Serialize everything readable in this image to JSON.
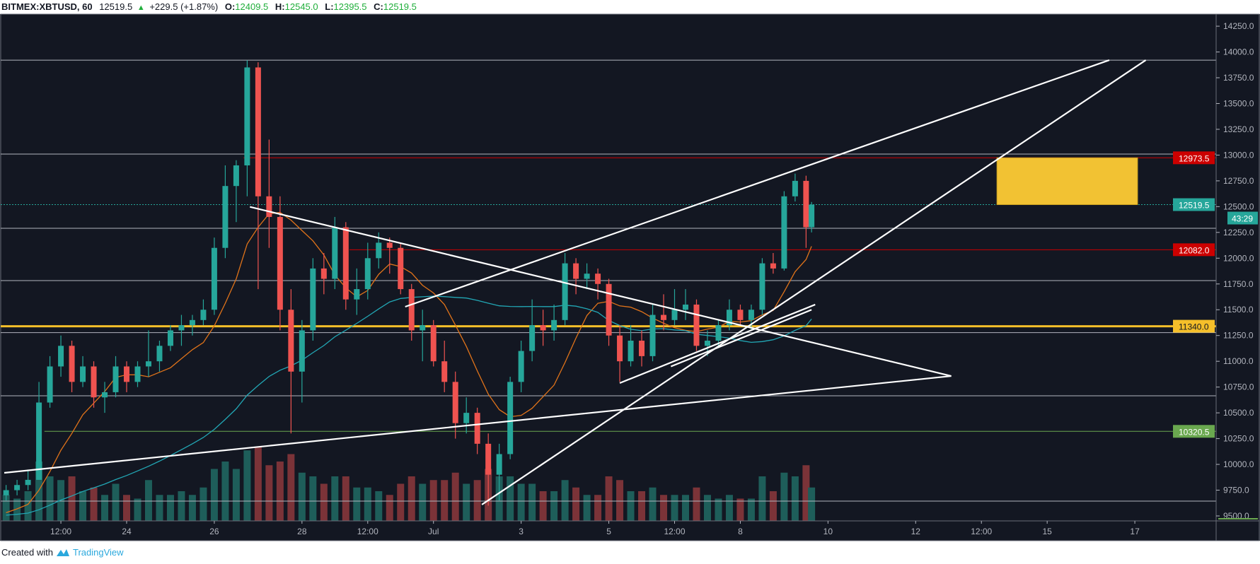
{
  "header": {
    "symbol": "BITMEX:XBTUSD, 60",
    "last": "12519.5",
    "change": "+229.5 (+1.87%)",
    "open_label": "O:",
    "open": "12409.5",
    "high_label": "H:",
    "high": "12545.0",
    "low_label": "L:",
    "low": "12395.5",
    "close_label": "C:",
    "close": "12519.5",
    "direction_icon": "triangle-up-icon"
  },
  "footer": {
    "created_with": "Created with",
    "brand": "TradingView",
    "logo_icon": "tradingview-logo-icon"
  },
  "colors": {
    "background": "#131722",
    "up": "#26a69a",
    "down": "#ef5350",
    "volume_up": "#1e5e5a",
    "volume_down": "#7b3338",
    "trendline": "#ffffff",
    "hline": "#b2b5be",
    "resistance": "#cc0000",
    "key_level": "#f5bf2a",
    "support": "#6aa84f",
    "last_price": "#26a69a",
    "target_box": "#f2c233",
    "ma_fast": "#e0731a",
    "ma_slow": "#22a7b5"
  },
  "chart_data": {
    "type": "candlestick",
    "symbol": "BITMEX:XBTUSD",
    "interval": "60",
    "ylim": [
      9400,
      14350
    ],
    "y_ticks": [
      "14250.0",
      "14000.0",
      "13750.0",
      "13500.0",
      "13250.0",
      "13000.0",
      "12750.0",
      "12500.0",
      "12250.0",
      "12000.0",
      "11750.0",
      "11500.0",
      "11250.0",
      "11000.0",
      "10750.0",
      "10500.0",
      "10250.0",
      "10000.0",
      "9750.0",
      "9500.0"
    ],
    "x_ticks": [
      {
        "label": "12:00",
        "time": "06-22 12:00"
      },
      {
        "label": "24",
        "time": "06-24 00:00"
      },
      {
        "label": "26",
        "time": "06-26 00:00"
      },
      {
        "label": "28",
        "time": "06-28 00:00"
      },
      {
        "label": "12:00",
        "time": "06-29 12:00"
      },
      {
        "label": "Jul",
        "time": "07-01 00:00"
      },
      {
        "label": "3",
        "time": "07-03 00:00"
      },
      {
        "label": "5",
        "time": "07-05 00:00"
      },
      {
        "label": "12:00",
        "time": "07-06 12:00"
      },
      {
        "label": "8",
        "time": "07-08 00:00"
      },
      {
        "label": "10",
        "time": "07-10 00:00"
      },
      {
        "label": "12",
        "time": "07-12 00:00"
      },
      {
        "label": "12:00",
        "time": "07-13 12:00"
      },
      {
        "label": "15",
        "time": "07-15 00:00"
      },
      {
        "label": "17",
        "time": "07-17 00:00"
      }
    ],
    "x_range": [
      "06-21 04:00",
      "07-20 00:00"
    ],
    "candle_fields": [
      "time",
      "open",
      "high",
      "low",
      "close",
      "volume_relative"
    ],
    "candles": [
      [
        "06-21 06:00",
        9700,
        9800,
        9650,
        9750,
        0.35
      ],
      [
        "06-21 12:00",
        9750,
        9850,
        9700,
        9800,
        0.3
      ],
      [
        "06-21 18:00",
        9800,
        9950,
        9750,
        9850,
        0.4
      ],
      [
        "06-22 00:00",
        9850,
        10800,
        9850,
        10600,
        0.8
      ],
      [
        "06-22 06:00",
        10600,
        11050,
        10550,
        10950,
        0.6
      ],
      [
        "06-22 12:00",
        10950,
        11250,
        10850,
        11150,
        0.55
      ],
      [
        "06-22 18:00",
        11150,
        11200,
        10700,
        10800,
        0.6
      ],
      [
        "06-23 00:00",
        10800,
        11050,
        10750,
        10950,
        0.4
      ],
      [
        "06-23 06:00",
        10950,
        11000,
        10550,
        10650,
        0.45
      ],
      [
        "06-23 12:00",
        10650,
        10800,
        10500,
        10700,
        0.35
      ],
      [
        "06-23 18:00",
        10700,
        11050,
        10650,
        10950,
        0.5
      ],
      [
        "06-24 00:00",
        10950,
        11000,
        10700,
        10800,
        0.35
      ],
      [
        "06-24 06:00",
        10800,
        11000,
        10750,
        10950,
        0.3
      ],
      [
        "06-24 12:00",
        10950,
        11300,
        10850,
        11000,
        0.55
      ],
      [
        "06-24 18:00",
        11000,
        11200,
        10900,
        11150,
        0.35
      ],
      [
        "06-25 00:00",
        11150,
        11350,
        11100,
        11300,
        0.35
      ],
      [
        "06-25 06:00",
        11300,
        11450,
        11150,
        11350,
        0.4
      ],
      [
        "06-25 12:00",
        11350,
        11450,
        11250,
        11400,
        0.35
      ],
      [
        "06-25 18:00",
        11400,
        11600,
        11350,
        11500,
        0.45
      ],
      [
        "06-26 00:00",
        11500,
        12200,
        11450,
        12100,
        0.7
      ],
      [
        "06-26 06:00",
        12100,
        12900,
        12000,
        12700,
        0.8
      ],
      [
        "06-26 12:00",
        12700,
        12950,
        12350,
        12900,
        0.7
      ],
      [
        "06-26 18:00",
        12900,
        13920,
        12600,
        13850,
        0.95
      ],
      [
        "06-27 00:00",
        13850,
        13900,
        11700,
        12600,
        1.0
      ],
      [
        "06-27 06:00",
        12600,
        13150,
        12100,
        12400,
        0.75
      ],
      [
        "06-27 12:00",
        12400,
        12600,
        11300,
        11500,
        0.8
      ],
      [
        "06-27 18:00",
        11500,
        11700,
        10300,
        10900,
        0.9
      ],
      [
        "06-28 00:00",
        10900,
        11400,
        10600,
        11300,
        0.65
      ],
      [
        "06-28 06:00",
        11300,
        12000,
        11200,
        11900,
        0.6
      ],
      [
        "06-28 12:00",
        11900,
        12050,
        11650,
        11800,
        0.5
      ],
      [
        "06-28 18:00",
        11800,
        12400,
        11700,
        12300,
        0.6
      ],
      [
        "06-29 00:00",
        12300,
        12350,
        11500,
        11600,
        0.6
      ],
      [
        "06-29 06:00",
        11600,
        11900,
        11450,
        11700,
        0.45
      ],
      [
        "06-29 12:00",
        11700,
        12150,
        11600,
        12000,
        0.45
      ],
      [
        "06-29 18:00",
        12000,
        12250,
        11900,
        12150,
        0.4
      ],
      [
        "06-30 00:00",
        12150,
        12200,
        11850,
        12100,
        0.35
      ],
      [
        "06-30 06:00",
        12100,
        12150,
        11650,
        11700,
        0.5
      ],
      [
        "06-30 12:00",
        11700,
        11750,
        11200,
        11300,
        0.6
      ],
      [
        "06-30 18:00",
        11300,
        11500,
        11000,
        11350,
        0.5
      ],
      [
        "07-01 00:00",
        11350,
        11400,
        10950,
        11000,
        0.55
      ],
      [
        "07-01 06:00",
        11000,
        11200,
        10700,
        10800,
        0.55
      ],
      [
        "07-01 12:00",
        10800,
        10900,
        10250,
        10400,
        0.65
      ],
      [
        "07-01 18:00",
        10400,
        10650,
        10300,
        10500,
        0.5
      ],
      [
        "07-02 00:00",
        10500,
        10550,
        10100,
        10200,
        0.55
      ],
      [
        "07-02 06:00",
        10200,
        10300,
        9600,
        9900,
        0.7
      ],
      [
        "07-02 12:00",
        9900,
        10200,
        9650,
        10100,
        0.6
      ],
      [
        "07-02 18:00",
        10100,
        10850,
        10050,
        10800,
        0.6
      ],
      [
        "07-03 00:00",
        10800,
        11200,
        10700,
        11100,
        0.5
      ],
      [
        "07-03 06:00",
        11100,
        11600,
        11000,
        11350,
        0.5
      ],
      [
        "07-03 12:00",
        11350,
        11500,
        11150,
        11300,
        0.4
      ],
      [
        "07-03 18:00",
        11300,
        11550,
        11200,
        11400,
        0.4
      ],
      [
        "07-04 00:00",
        11400,
        12050,
        11350,
        11950,
        0.55
      ],
      [
        "07-04 06:00",
        11950,
        12000,
        11650,
        11800,
        0.45
      ],
      [
        "07-04 12:00",
        11800,
        11950,
        11700,
        11850,
        0.35
      ],
      [
        "07-04 18:00",
        11850,
        11900,
        11600,
        11750,
        0.35
      ],
      [
        "07-05 00:00",
        11750,
        11800,
        11150,
        11250,
        0.6
      ],
      [
        "07-05 06:00",
        11250,
        11350,
        10800,
        11000,
        0.55
      ],
      [
        "07-05 12:00",
        11000,
        11350,
        10950,
        11200,
        0.4
      ],
      [
        "07-05 18:00",
        11200,
        11300,
        10950,
        11050,
        0.4
      ],
      [
        "07-06 00:00",
        11050,
        11550,
        11000,
        11450,
        0.45
      ],
      [
        "07-06 06:00",
        11450,
        11650,
        11300,
        11400,
        0.35
      ],
      [
        "07-06 12:00",
        11400,
        11700,
        11350,
        11500,
        0.35
      ],
      [
        "07-06 18:00",
        11500,
        11700,
        11400,
        11550,
        0.35
      ],
      [
        "07-07 00:00",
        11550,
        11600,
        11100,
        11150,
        0.45
      ],
      [
        "07-07 06:00",
        11150,
        11300,
        11050,
        11200,
        0.35
      ],
      [
        "07-07 12:00",
        11200,
        11400,
        11150,
        11350,
        0.3
      ],
      [
        "07-07 18:00",
        11350,
        11600,
        11300,
        11500,
        0.35
      ],
      [
        "07-08 00:00",
        11500,
        11550,
        11350,
        11400,
        0.3
      ],
      [
        "07-08 06:00",
        11400,
        11550,
        11300,
        11500,
        0.3
      ],
      [
        "07-08 12:00",
        11500,
        12000,
        11450,
        11950,
        0.6
      ],
      [
        "07-08 18:00",
        11950,
        12050,
        11850,
        11900,
        0.4
      ],
      [
        "07-09 00:00",
        11900,
        12650,
        11880,
        12600,
        0.65
      ],
      [
        "07-09 06:00",
        12600,
        12820,
        12550,
        12750,
        0.6
      ],
      [
        "07-09 12:00",
        12750,
        12800,
        12100,
        12300,
        0.75
      ],
      [
        "07-09 15:00",
        12300,
        12545,
        12250,
        12519.5,
        0.45
      ]
    ],
    "moving_averages": [
      {
        "color": "#e0731a"
      },
      {
        "color": "#22a7b5"
      }
    ],
    "horizontal_lines": [
      {
        "price": 13921,
        "style": "gray"
      },
      {
        "price": 13010,
        "style": "gray"
      },
      {
        "price": 12973.5,
        "style": "resistance",
        "from": "06-26 16:00"
      },
      {
        "price": 12519.5,
        "style": "last-price-dotted"
      },
      {
        "price": 12290,
        "style": "gray"
      },
      {
        "price": 12082.0,
        "style": "resistance",
        "from": "06-29 02:00"
      },
      {
        "price": 11783,
        "style": "gray"
      },
      {
        "price": 11340.0,
        "style": "key-level"
      },
      {
        "price": 11278,
        "style": "gray"
      },
      {
        "price": 10665,
        "style": "gray"
      },
      {
        "price": 10320.5,
        "style": "support",
        "from": "06-22 03:00"
      },
      {
        "price": 9644,
        "style": "gray"
      }
    ],
    "trendlines": [
      {
        "from": [
          "06-21 05:00",
          9918
        ],
        "to": [
          "07-12 19:30",
          10857
        ]
      },
      {
        "from": [
          "06-26 19:30",
          12498
        ],
        "to": [
          "07-12 19:30",
          10857
        ]
      },
      {
        "from": [
          "06-30 08:30",
          11529
        ],
        "to": [
          "07-16 10:00",
          13921
        ]
      },
      {
        "from": [
          "07-02 02:30",
          9610
        ],
        "to": [
          "07-17 06:00",
          13921
        ]
      },
      {
        "from": [
          "07-05 06:00",
          10789
        ],
        "to": [
          "07-09 17:00",
          11550
        ]
      },
      {
        "from": [
          "07-06 10:00",
          10950
        ],
        "to": [
          "07-09 15:00",
          11500
        ]
      }
    ],
    "target_box": {
      "from": "07-13 20:30",
      "to": "07-17 01:30",
      "top": 12973.5,
      "bottom": 12519.5
    },
    "price_labels": [
      {
        "text": "12973.5",
        "price": 12973.5,
        "bg": "#cc0000",
        "fg": "#ffffff"
      },
      {
        "text": "12519.5",
        "price": 12519.5,
        "bg": "#26a69a",
        "fg": "#ffffff"
      },
      {
        "text": "12082.0",
        "price": 12082.0,
        "bg": "#cc0000",
        "fg": "#ffffff"
      },
      {
        "text": "11340.0",
        "price": 11340.0,
        "bg": "#f5bf2a",
        "fg": "#131722"
      },
      {
        "text": "10320.5",
        "price": 10320.5,
        "bg": "#6aa84f",
        "fg": "#ffffff"
      }
    ],
    "countdown": "43:29"
  }
}
